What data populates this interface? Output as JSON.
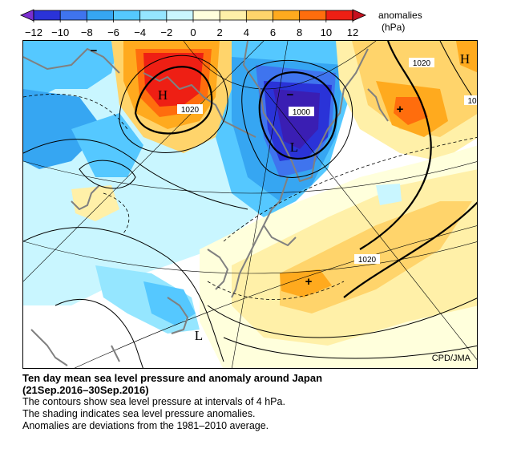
{
  "legend": {
    "title_line1": "anomalies",
    "title_line2": "(hPa)",
    "ticks": [
      "−12",
      "−10",
      "−8",
      "−6",
      "−4",
      "−2",
      "0",
      "2",
      "4",
      "6",
      "8",
      "10",
      "12"
    ],
    "colors": [
      "#2a33d8",
      "#3f74ee",
      "#36a6f2",
      "#55c8ff",
      "#95e6ff",
      "#c9f6ff",
      "#ffffdc",
      "#fff0a8",
      "#ffd46b",
      "#ffaa1e",
      "#ff6d0d",
      "#ee1f14"
    ]
  },
  "map": {
    "pressure_labels": [
      "1020",
      "1000",
      "1020",
      "1020",
      "10"
    ],
    "center_labels": [
      "H",
      "L",
      "H",
      "L"
    ],
    "center_markers": [
      "−",
      "+",
      "+",
      "−"
    ],
    "credit": "CPD/JMA"
  },
  "caption": {
    "title_line1": "Ten day mean sea level pressure and anomaly around Japan",
    "title_line2": "(21Sep.2016–30Sep.2016)",
    "lines": [
      "The contours show sea level pressure at intervals of 4 hPa.",
      "The shading indicates sea level pressure anomalies.",
      "Anomalies are deviations from the 1981–2010 average."
    ]
  }
}
